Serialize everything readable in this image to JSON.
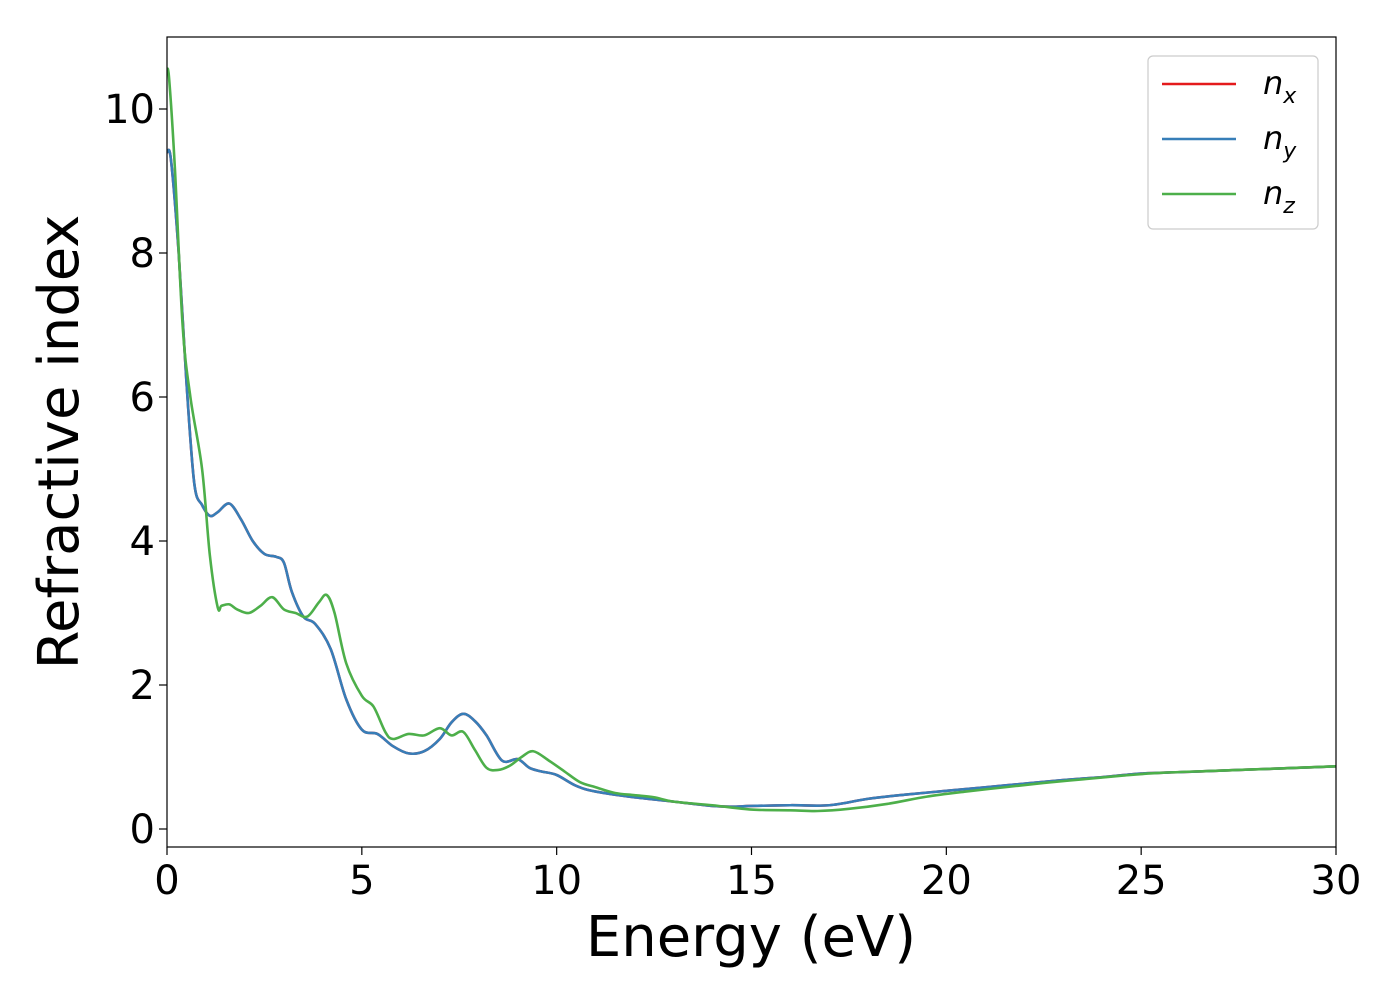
{
  "chart_data": {
    "type": "line",
    "xlabel": "Energy (eV)",
    "ylabel": "Refractive index",
    "xlim": [
      0,
      30
    ],
    "ylim": [
      -0.25,
      11
    ],
    "xticks": [
      0,
      5,
      10,
      15,
      20,
      25,
      30
    ],
    "yticks": [
      0,
      2,
      4,
      6,
      8,
      10
    ],
    "grid": false,
    "legend_position": "top-right",
    "series": [
      {
        "name": "n",
        "subscript": "x",
        "color": "#e41a1c",
        "x": [
          0,
          0.1,
          0.3,
          0.5,
          0.7,
          0.9,
          1.1,
          1.3,
          1.6,
          1.9,
          2.2,
          2.5,
          2.8,
          3.0,
          3.2,
          3.5,
          3.8,
          4.2,
          4.6,
          5.0,
          5.4,
          5.8,
          6.2,
          6.6,
          7.0,
          7.3,
          7.6,
          7.9,
          8.2,
          8.6,
          9.0,
          9.3,
          9.6,
          10.0,
          10.5,
          11.0,
          12.0,
          13.0,
          14.0,
          14.5,
          15.0,
          16.0,
          17.0,
          18.0,
          19.0,
          20.0,
          21.0,
          22.0,
          23.0,
          24.0,
          25.0,
          26.0,
          27.0,
          28.0,
          29.0,
          30.0
        ],
        "values": [
          9.4,
          9.3,
          8.0,
          6.2,
          4.8,
          4.5,
          4.35,
          4.4,
          4.52,
          4.3,
          4.0,
          3.82,
          3.78,
          3.7,
          3.3,
          2.95,
          2.85,
          2.5,
          1.8,
          1.38,
          1.32,
          1.15,
          1.05,
          1.08,
          1.25,
          1.48,
          1.6,
          1.5,
          1.3,
          0.95,
          0.97,
          0.85,
          0.8,
          0.75,
          0.6,
          0.52,
          0.44,
          0.38,
          0.32,
          0.31,
          0.32,
          0.33,
          0.33,
          0.42,
          0.48,
          0.53,
          0.58,
          0.63,
          0.68,
          0.72,
          0.77,
          0.79,
          0.81,
          0.83,
          0.85,
          0.87
        ]
      },
      {
        "name": "n",
        "subscript": "y",
        "color": "#377eb8",
        "x": [
          0,
          0.1,
          0.3,
          0.5,
          0.7,
          0.9,
          1.1,
          1.3,
          1.6,
          1.9,
          2.2,
          2.5,
          2.8,
          3.0,
          3.2,
          3.5,
          3.8,
          4.2,
          4.6,
          5.0,
          5.4,
          5.8,
          6.2,
          6.6,
          7.0,
          7.3,
          7.6,
          7.9,
          8.2,
          8.6,
          9.0,
          9.3,
          9.6,
          10.0,
          10.5,
          11.0,
          12.0,
          13.0,
          14.0,
          14.5,
          15.0,
          16.0,
          17.0,
          18.0,
          19.0,
          20.0,
          21.0,
          22.0,
          23.0,
          24.0,
          25.0,
          26.0,
          27.0,
          28.0,
          29.0,
          30.0
        ],
        "values": [
          9.4,
          9.3,
          8.0,
          6.2,
          4.8,
          4.5,
          4.35,
          4.4,
          4.52,
          4.3,
          4.0,
          3.82,
          3.78,
          3.7,
          3.3,
          2.95,
          2.85,
          2.5,
          1.8,
          1.38,
          1.32,
          1.15,
          1.05,
          1.08,
          1.25,
          1.48,
          1.6,
          1.5,
          1.3,
          0.95,
          0.97,
          0.85,
          0.8,
          0.75,
          0.6,
          0.52,
          0.44,
          0.38,
          0.32,
          0.31,
          0.32,
          0.33,
          0.33,
          0.42,
          0.48,
          0.53,
          0.58,
          0.63,
          0.68,
          0.72,
          0.77,
          0.79,
          0.81,
          0.83,
          0.85,
          0.87
        ]
      },
      {
        "name": "n",
        "subscript": "z",
        "color": "#4daf4a",
        "x": [
          0,
          0.05,
          0.2,
          0.4,
          0.6,
          0.9,
          1.1,
          1.3,
          1.4,
          1.6,
          1.8,
          2.1,
          2.4,
          2.7,
          3.0,
          3.3,
          3.6,
          3.9,
          4.1,
          4.3,
          4.6,
          5.0,
          5.3,
          5.6,
          5.8,
          6.2,
          6.6,
          7.0,
          7.3,
          7.6,
          7.9,
          8.2,
          8.5,
          8.8,
          9.1,
          9.4,
          9.8,
          10.2,
          10.6,
          11.0,
          11.5,
          12.0,
          12.5,
          13.0,
          14.0,
          15.0,
          16.0,
          16.7,
          17.5,
          18.5,
          19.5,
          20.5,
          21.5,
          22.5,
          23.5,
          24.5,
          25.5,
          27.0,
          28.5,
          30.0
        ],
        "values": [
          10.5,
          10.45,
          9.2,
          7.0,
          6.0,
          5.0,
          3.8,
          3.08,
          3.1,
          3.12,
          3.05,
          3.0,
          3.1,
          3.22,
          3.05,
          3.0,
          2.95,
          3.15,
          3.25,
          3.0,
          2.3,
          1.85,
          1.7,
          1.35,
          1.25,
          1.32,
          1.3,
          1.4,
          1.3,
          1.35,
          1.1,
          0.85,
          0.82,
          0.88,
          1.0,
          1.08,
          0.95,
          0.8,
          0.65,
          0.58,
          0.5,
          0.47,
          0.44,
          0.38,
          0.33,
          0.27,
          0.26,
          0.25,
          0.28,
          0.35,
          0.45,
          0.52,
          0.58,
          0.64,
          0.69,
          0.74,
          0.78,
          0.81,
          0.84,
          0.87
        ]
      }
    ]
  }
}
